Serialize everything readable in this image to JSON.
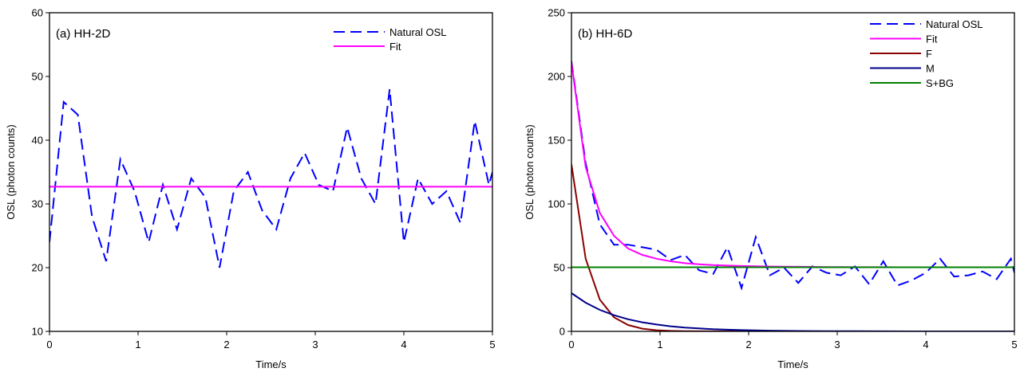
{
  "chart_data": [
    {
      "type": "line",
      "panel_label": "(a)  HH-2D",
      "xlabel": "Time/s",
      "ylabel": "OSL (photon counts)",
      "xlim": [
        0,
        5
      ],
      "ylim": [
        10,
        60
      ],
      "xticks": [
        0,
        1,
        2,
        3,
        4,
        5
      ],
      "yticks": [
        10,
        20,
        30,
        40,
        50,
        60
      ],
      "grid": false,
      "legend_position": "top-right",
      "series": [
        {
          "name": "Natural OSL",
          "color": "#0000ff",
          "dash": "dashed",
          "x": [
            0,
            0.16,
            0.32,
            0.48,
            0.64,
            0.8,
            0.96,
            1.12,
            1.28,
            1.44,
            1.6,
            1.76,
            1.92,
            2.08,
            2.24,
            2.4,
            2.56,
            2.72,
            2.88,
            3.04,
            3.2,
            3.36,
            3.52,
            3.68,
            3.84,
            4.0,
            4.16,
            4.32,
            4.48,
            4.64,
            4.8,
            4.96,
            5.0
          ],
          "y": [
            24,
            46,
            44,
            28,
            21,
            37,
            32,
            24,
            33,
            26,
            34,
            31,
            20,
            32,
            35,
            29,
            26,
            34,
            38,
            33,
            32,
            42,
            34,
            30,
            48,
            24,
            34,
            30,
            32,
            27,
            43,
            33,
            35
          ]
        },
        {
          "name": "Fit",
          "color": "#ff00ff",
          "dash": "solid",
          "x": [
            0,
            5
          ],
          "y": [
            32.7,
            32.7
          ]
        }
      ]
    },
    {
      "type": "line",
      "panel_label": "(b)  HH-6D",
      "xlabel": "Time/s",
      "ylabel": "OSL (photon counts)",
      "xlim": [
        0,
        5
      ],
      "ylim": [
        0,
        250
      ],
      "xticks": [
        0,
        1,
        2,
        3,
        4,
        5
      ],
      "yticks": [
        0,
        50,
        100,
        150,
        200,
        250
      ],
      "grid": false,
      "legend_position": "top-right",
      "series": [
        {
          "name": "Natural OSL",
          "color": "#0000ff",
          "dash": "dashed",
          "x": [
            0,
            0.16,
            0.32,
            0.48,
            0.64,
            0.8,
            0.96,
            1.12,
            1.28,
            1.44,
            1.6,
            1.76,
            1.92,
            2.08,
            2.24,
            2.4,
            2.56,
            2.72,
            2.88,
            3.04,
            3.2,
            3.36,
            3.52,
            3.68,
            3.84,
            4.0,
            4.16,
            4.32,
            4.48,
            4.64,
            4.8,
            4.96,
            5.0
          ],
          "y": [
            212,
            132,
            84,
            68,
            68,
            66,
            64,
            56,
            60,
            48,
            45,
            66,
            34,
            74,
            44,
            50,
            38,
            51,
            46,
            44,
            51,
            37,
            55,
            36,
            40,
            46,
            57,
            43,
            44,
            47,
            41,
            57,
            46
          ]
        },
        {
          "name": "Fit",
          "color": "#ff00ff",
          "dash": "solid",
          "x": [
            0,
            0.16,
            0.32,
            0.48,
            0.64,
            0.8,
            0.96,
            1.12,
            1.28,
            1.44,
            1.6,
            1.76,
            1.92,
            2.08,
            2.24,
            2.4,
            2.56,
            2.72,
            2.88,
            3.04,
            3.2,
            3.36,
            3.52,
            3.68,
            3.84,
            4.0,
            4.16,
            4.32,
            4.48,
            4.64,
            4.8,
            4.96,
            5.0
          ],
          "y": [
            211,
            129,
            93,
            75,
            65,
            60,
            57,
            55,
            53.5,
            52.6,
            52,
            51.6,
            51.3,
            51.1,
            50.9,
            50.8,
            50.7,
            50.6,
            50.5,
            50.5,
            50.4,
            50.4,
            50.4,
            50.3,
            50.3,
            50.3,
            50.3,
            50.3,
            50.3,
            50.3,
            50.3,
            50.3,
            50.3
          ]
        },
        {
          "name": "F",
          "color": "#8b0000",
          "dash": "solid",
          "x": [
            0,
            0.16,
            0.32,
            0.48,
            0.64,
            0.8,
            0.96,
            1.12,
            1.28,
            1.6,
            2.0,
            3.0,
            4.0,
            5.0
          ],
          "y": [
            131,
            57,
            25,
            11,
            5,
            2.1,
            0.9,
            0.4,
            0.2,
            0.05,
            0,
            0,
            0,
            0
          ]
        },
        {
          "name": "M",
          "color": "#00008b",
          "dash": "solid",
          "x": [
            0,
            0.16,
            0.32,
            0.48,
            0.64,
            0.8,
            0.96,
            1.12,
            1.28,
            1.44,
            1.6,
            1.76,
            1.92,
            2.24,
            2.56,
            2.88,
            3.2,
            3.52,
            4.0,
            4.5,
            5.0
          ],
          "y": [
            30,
            22.5,
            16.9,
            12.7,
            9.5,
            7.1,
            5.4,
            4.0,
            3.0,
            2.3,
            1.7,
            1.3,
            1.0,
            0.55,
            0.3,
            0.17,
            0.1,
            0.05,
            0.02,
            0.01,
            0
          ]
        },
        {
          "name": "S+BG",
          "color": "#008000",
          "dash": "solid",
          "x": [
            0,
            5
          ],
          "y": [
            50.3,
            50.3
          ]
        }
      ]
    }
  ]
}
